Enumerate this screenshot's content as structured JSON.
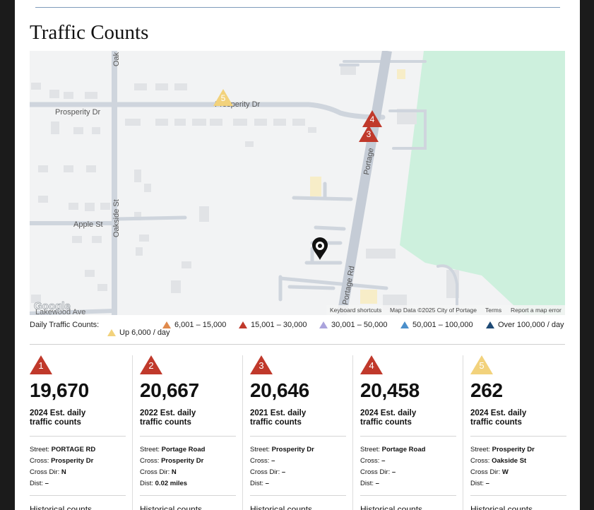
{
  "header": {
    "title": "Traffic Counts"
  },
  "map": {
    "street_labels": [
      "Prosperity Dr",
      "Prosperity Dr",
      "Oakside St",
      "Apple St",
      "Portage Rd",
      "Portage",
      "Lakewood Ave",
      "Oak"
    ],
    "markers": [
      {
        "number": "5",
        "color": "#f2d27c"
      },
      {
        "number": "4",
        "color": "#c0392b"
      },
      {
        "number": "3",
        "color": "#c0392b"
      }
    ],
    "logo": "Google",
    "attribution": [
      "Keyboard shortcuts",
      "Map Data ©2025 City of Portage",
      "Terms",
      "Report a map error"
    ]
  },
  "legend": {
    "title": "Daily Traffic Counts:",
    "items": [
      {
        "label": "6,001 – 15,000",
        "color": "#e08a4c"
      },
      {
        "label": "15,001 – 30,000",
        "color": "#c0392b"
      },
      {
        "label": "30,001 – 50,000",
        "color": "#aaa3dc"
      },
      {
        "label": "50,001 – 100,000",
        "color": "#4b8fcb"
      },
      {
        "label": "Over 100,000 / day",
        "color": "#1e4a75"
      },
      {
        "label": "Up 6,000 / day",
        "color": "#f2d27c"
      }
    ]
  },
  "cards": [
    {
      "marker": "1",
      "color": "#c0392b",
      "count": "19,670",
      "caption": "2024 Est. daily traffic counts",
      "fields": [
        {
          "label": "Street:",
          "value": "PORTAGE RD"
        },
        {
          "label": "Cross:",
          "value": "Prosperity Dr"
        },
        {
          "label": "Cross Dir:",
          "value": "N"
        },
        {
          "label": "Dist:",
          "value": "–"
        }
      ],
      "history": "Historical counts"
    },
    {
      "marker": "2",
      "color": "#c0392b",
      "count": "20,667",
      "caption": "2022 Est. daily traffic counts",
      "fields": [
        {
          "label": "Street:",
          "value": "Portage Road"
        },
        {
          "label": "Cross:",
          "value": "Prosperity Dr"
        },
        {
          "label": "Cross Dir:",
          "value": "N"
        },
        {
          "label": "Dist:",
          "value": "0.02 miles"
        }
      ],
      "history": "Historical counts"
    },
    {
      "marker": "3",
      "color": "#c0392b",
      "count": "20,646",
      "caption": "2021 Est. daily traffic counts",
      "fields": [
        {
          "label": "Street:",
          "value": "Prosperity Dr"
        },
        {
          "label": "Cross:",
          "value": "–"
        },
        {
          "label": "Cross Dir:",
          "value": "–"
        },
        {
          "label": "Dist:",
          "value": "–"
        }
      ],
      "history": "Historical counts"
    },
    {
      "marker": "4",
      "color": "#c0392b",
      "count": "20,458",
      "caption": "2024 Est. daily traffic counts",
      "fields": [
        {
          "label": "Street:",
          "value": "Portage Road"
        },
        {
          "label": "Cross:",
          "value": "–"
        },
        {
          "label": "Cross Dir:",
          "value": "–"
        },
        {
          "label": "Dist:",
          "value": "–"
        }
      ],
      "history": "Historical counts"
    },
    {
      "marker": "5",
      "color": "#f2d27c",
      "count": "262",
      "caption": "2024 Est. daily traffic counts",
      "fields": [
        {
          "label": "Street:",
          "value": "Prosperity Dr"
        },
        {
          "label": "Cross:",
          "value": "Oakside St"
        },
        {
          "label": "Cross Dir:",
          "value": "W"
        },
        {
          "label": "Dist:",
          "value": "–"
        }
      ],
      "history": "Historical counts"
    }
  ]
}
